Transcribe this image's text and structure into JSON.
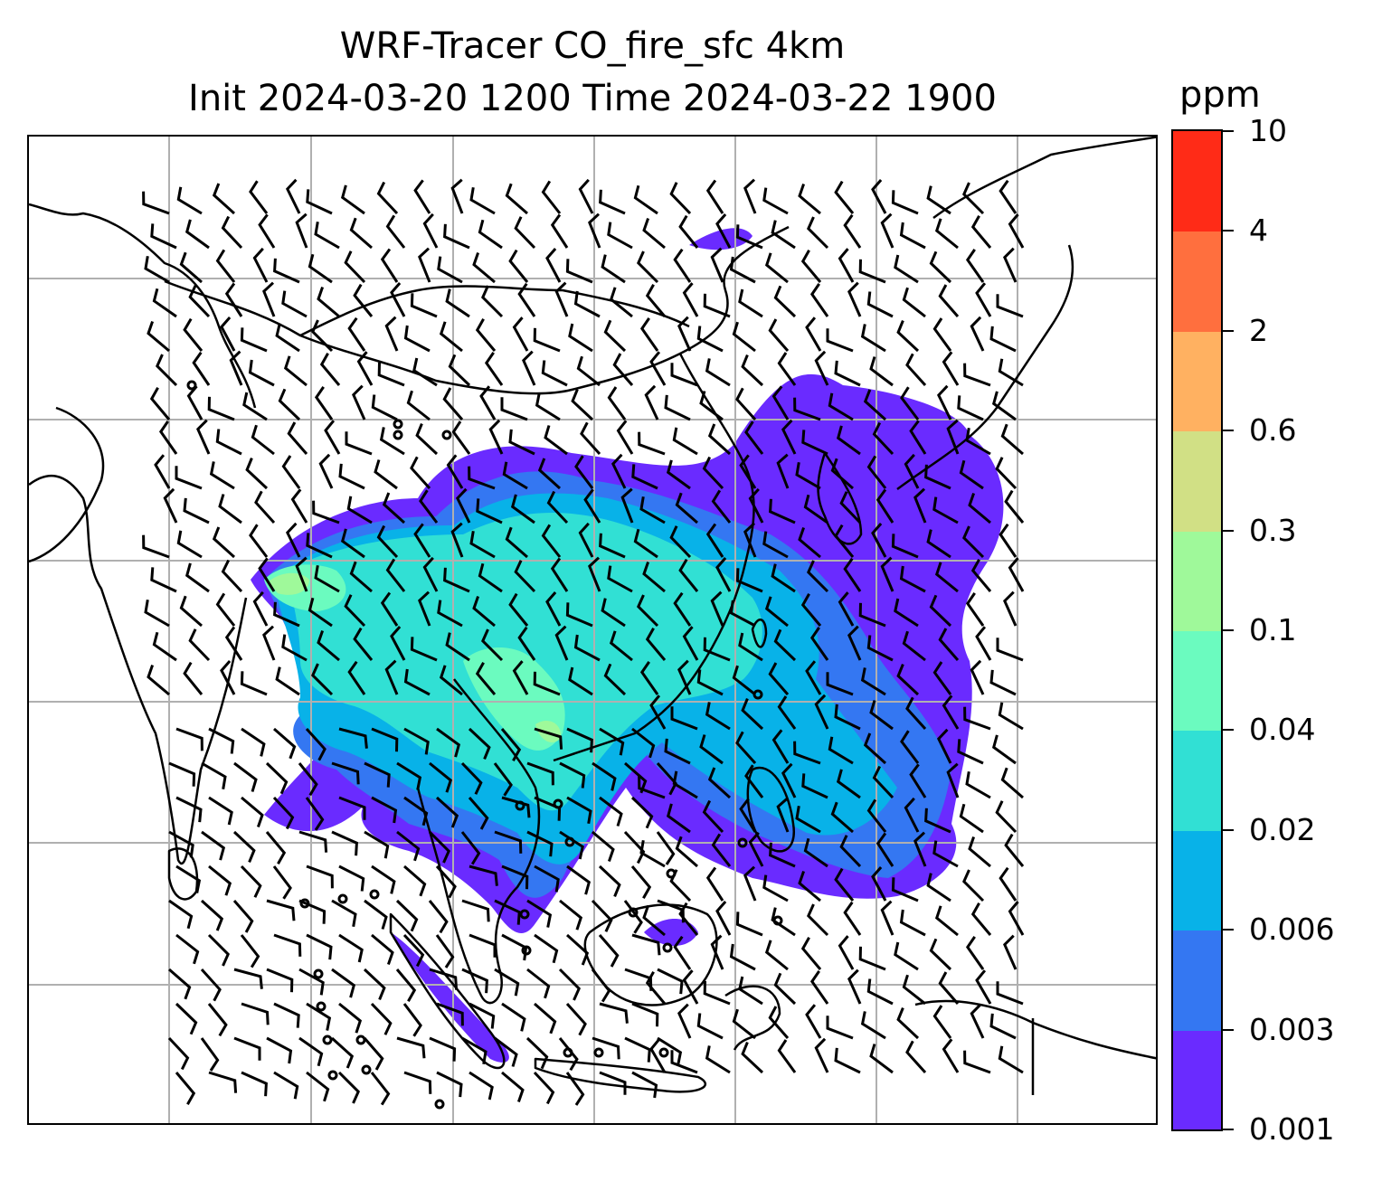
{
  "title": {
    "line1": "WRF-Tracer CO_fire_sfc 4km",
    "line2": "Init 2024-03-20 1200 Time 2024-03-22 1900"
  },
  "colorbar": {
    "unit": "ppm",
    "levels": [
      "0.001",
      "0.003",
      "0.006",
      "0.02",
      "0.04",
      "0.1",
      "0.3",
      "0.6",
      "2",
      "4",
      "10"
    ],
    "colors": [
      "#6a2bff",
      "#3477f2",
      "#08b2e8",
      "#31e0d4",
      "#6bfbbf",
      "#9ff99a",
      "#d1e085",
      "#ffb161",
      "#ff6f3e",
      "#ff2b17"
    ]
  },
  "map": {
    "gridlines": "on",
    "grid_color": "#b0b0b0",
    "coastline_color": "#000000",
    "wind_barbs": "black",
    "calm_markers": "circles"
  }
}
